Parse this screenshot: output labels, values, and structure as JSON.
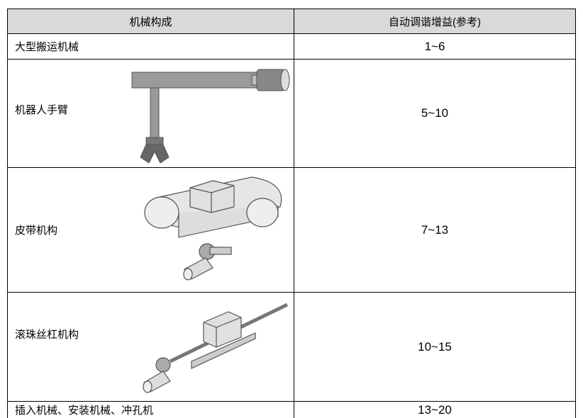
{
  "table": {
    "header": [
      "机械构成",
      "自动调谐增益(参考)"
    ],
    "rows": [
      [
        "大型搬运机械",
        "1~6"
      ],
      [
        "机器人手臂",
        "5~10"
      ],
      [
        "皮带机构",
        "7~13"
      ],
      [
        "滚珠丝杠机构",
        "10~15"
      ],
      [
        "插入机械、安装机械、冲孔机",
        "13~20"
      ]
    ]
  }
}
